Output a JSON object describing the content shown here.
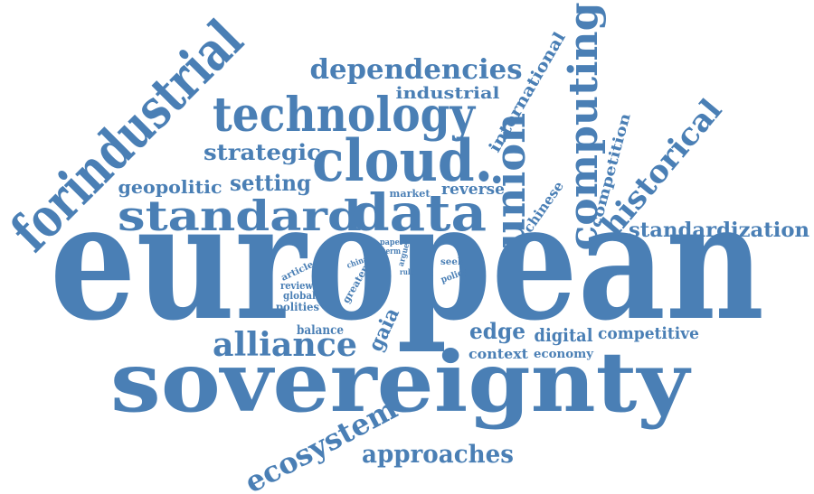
{
  "color": "#4a7fb5",
  "words": {
    "european": "european",
    "sovereignty": "sovereignty",
    "forindustrial": "forindustrial",
    "technology": "technology",
    "dependencies": "dependencies",
    "industrial": "industrial",
    "cloud": "cloud.",
    "computing": "computing",
    "union": "union",
    "data": "data",
    "standard": "standard",
    "strategic": "strategic",
    "geopolitic": "geopolitic",
    "setting": "setting",
    "international": "international",
    "historical": "historical",
    "competition": "competition",
    "chinese": "chinese",
    "standardization": "standardization",
    "reverse": "reverse",
    "market": "market",
    "paper": "paper",
    "term": "term",
    "argue": "argue",
    "rule": "rule",
    "china": "china",
    "greater": "greater",
    "article": "article",
    "review": "review",
    "global": "global",
    "polities": "polities",
    "seek": "seek",
    "policy": "policy",
    "alliance": "alliance",
    "balance": "balance",
    "gaia": "gaia",
    "edge": "edge",
    "digital": "digital",
    "competitive": "competitive",
    "context": "context",
    "economy": "economy",
    "ecosystem": "ecosystem",
    "approaches": "approaches"
  }
}
